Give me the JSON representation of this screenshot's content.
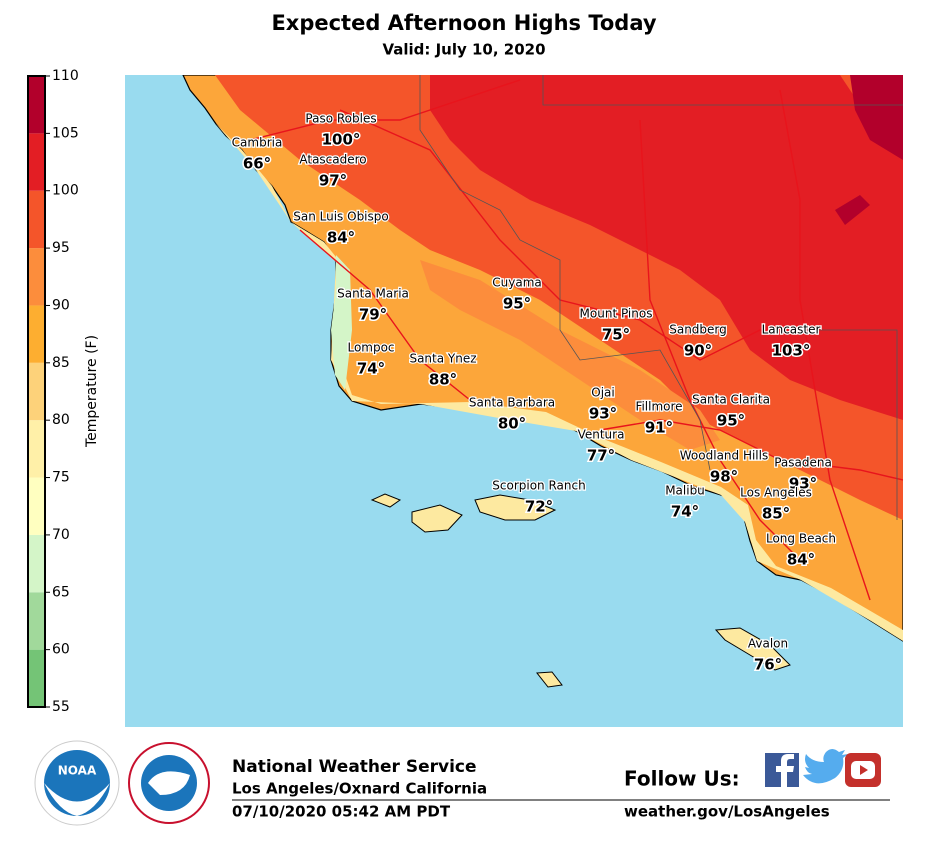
{
  "header": {
    "title": "Expected Afternoon Highs Today",
    "subtitle": "Valid: July 10, 2020"
  },
  "colorbar": {
    "label": "Temperature (F)",
    "ticks": [
      55,
      60,
      65,
      70,
      75,
      80,
      85,
      90,
      95,
      100,
      105,
      110
    ],
    "colors": [
      "#74c476",
      "#a1d99b",
      "#d4f5c8",
      "#ffffc0",
      "#fff0a8",
      "#fdd27a",
      "#fdae30",
      "#fc8d3c",
      "#f4552a",
      "#e31e24",
      "#b2002b"
    ]
  },
  "cities": [
    {
      "name": "Paso Robles",
      "temp": "100°"
    },
    {
      "name": "Cambria",
      "temp": "66°"
    },
    {
      "name": "Atascadero",
      "temp": "97°"
    },
    {
      "name": "San Luis Obispo",
      "temp": "84°"
    },
    {
      "name": "Santa Maria",
      "temp": "79°"
    },
    {
      "name": "Cuyama",
      "temp": "95°"
    },
    {
      "name": "Mount Pinos",
      "temp": "75°"
    },
    {
      "name": "Sandberg",
      "temp": "90°"
    },
    {
      "name": "Lancaster",
      "temp": "103°"
    },
    {
      "name": "Lompoc",
      "temp": "74°"
    },
    {
      "name": "Santa Ynez",
      "temp": "88°"
    },
    {
      "name": "Santa Barbara",
      "temp": "80°"
    },
    {
      "name": "Ojai",
      "temp": "93°"
    },
    {
      "name": "Fillmore",
      "temp": "91°"
    },
    {
      "name": "Santa Clarita",
      "temp": "95°"
    },
    {
      "name": "Ventura",
      "temp": "77°"
    },
    {
      "name": "Woodland Hills",
      "temp": "98°"
    },
    {
      "name": "Pasadena",
      "temp": "93°"
    },
    {
      "name": "Scorpion Ranch",
      "temp": "72°"
    },
    {
      "name": "Malibu",
      "temp": "74°"
    },
    {
      "name": "Los Angeles",
      "temp": "85°"
    },
    {
      "name": "Long Beach",
      "temp": "84°"
    },
    {
      "name": "Avalon",
      "temp": "76°"
    }
  ],
  "footer": {
    "logo": "NOAA",
    "org": "National Weather Service",
    "office": "Los Angeles/Oxnard California",
    "timestamp": "07/10/2020 05:42 AM PDT",
    "follow": "Follow Us:",
    "url": "weather.gov/LosAngeles"
  }
}
